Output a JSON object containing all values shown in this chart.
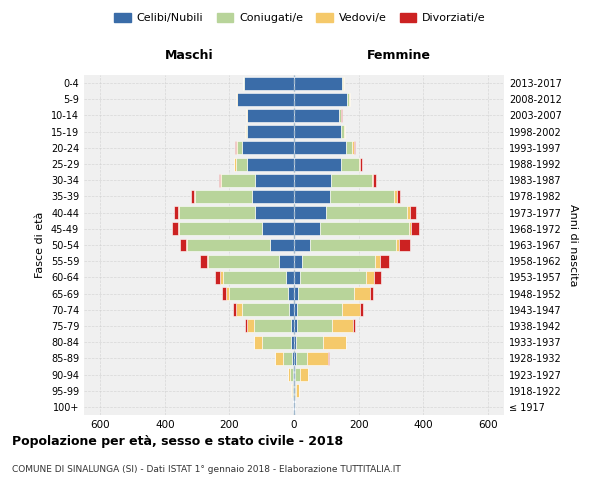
{
  "age_groups": [
    "100+",
    "95-99",
    "90-94",
    "85-89",
    "80-84",
    "75-79",
    "70-74",
    "65-69",
    "60-64",
    "55-59",
    "50-54",
    "45-49",
    "40-44",
    "35-39",
    "30-34",
    "25-29",
    "20-24",
    "15-19",
    "10-14",
    "5-9",
    "0-4"
  ],
  "birth_years": [
    "≤ 1917",
    "1918-1922",
    "1923-1927",
    "1928-1932",
    "1933-1937",
    "1938-1942",
    "1943-1947",
    "1948-1952",
    "1953-1957",
    "1958-1962",
    "1963-1967",
    "1968-1972",
    "1973-1977",
    "1978-1982",
    "1983-1987",
    "1988-1992",
    "1993-1997",
    "1998-2002",
    "2003-2007",
    "2008-2012",
    "2013-2017"
  ],
  "males": {
    "celibi": [
      2,
      2,
      2,
      5,
      8,
      10,
      15,
      20,
      25,
      45,
      75,
      100,
      120,
      130,
      120,
      145,
      160,
      145,
      145,
      175,
      155
    ],
    "coniugati": [
      0,
      5,
      10,
      30,
      90,
      115,
      145,
      180,
      195,
      220,
      255,
      255,
      235,
      175,
      105,
      35,
      15,
      5,
      2,
      2,
      2
    ],
    "vedovi": [
      0,
      3,
      8,
      25,
      25,
      20,
      18,
      12,
      8,
      5,
      5,
      5,
      5,
      5,
      3,
      5,
      5,
      2,
      2,
      2,
      2
    ],
    "divorziati": [
      0,
      0,
      0,
      0,
      2,
      8,
      10,
      12,
      18,
      22,
      18,
      18,
      10,
      8,
      5,
      2,
      2,
      0,
      0,
      0,
      0
    ]
  },
  "females": {
    "nubili": [
      2,
      2,
      3,
      5,
      5,
      8,
      10,
      12,
      18,
      25,
      50,
      80,
      100,
      110,
      115,
      145,
      160,
      145,
      140,
      165,
      150
    ],
    "coniugate": [
      0,
      5,
      15,
      35,
      85,
      110,
      140,
      175,
      205,
      225,
      265,
      275,
      250,
      200,
      125,
      55,
      20,
      10,
      5,
      5,
      2
    ],
    "vedove": [
      0,
      8,
      25,
      65,
      70,
      65,
      55,
      48,
      25,
      15,
      10,
      8,
      8,
      8,
      5,
      5,
      5,
      2,
      2,
      2,
      2
    ],
    "divorziate": [
      0,
      0,
      0,
      2,
      2,
      5,
      8,
      10,
      22,
      28,
      35,
      25,
      20,
      10,
      8,
      5,
      5,
      2,
      2,
      2,
      2
    ]
  },
  "colors": {
    "celibi": "#3a6ca8",
    "coniugati": "#b8d49a",
    "vedovi": "#f5c96a",
    "divorziati": "#cc2222"
  },
  "xlim": 650,
  "title": "Popolazione per età, sesso e stato civile - 2018",
  "subtitle": "COMUNE DI SINALUNGA (SI) - Dati ISTAT 1° gennaio 2018 - Elaborazione TUTTITALIA.IT",
  "ylabel": "Fasce di età",
  "right_ylabel": "Anni di nascita",
  "legend_labels": [
    "Celibi/Nubili",
    "Coniugati/e",
    "Vedovi/e",
    "Divorziati/e"
  ],
  "background_color": "#f0f0f0",
  "grid_color": "#cccccc",
  "bar_edge_color": "#ffffff",
  "bar_linewidth": 0.4
}
